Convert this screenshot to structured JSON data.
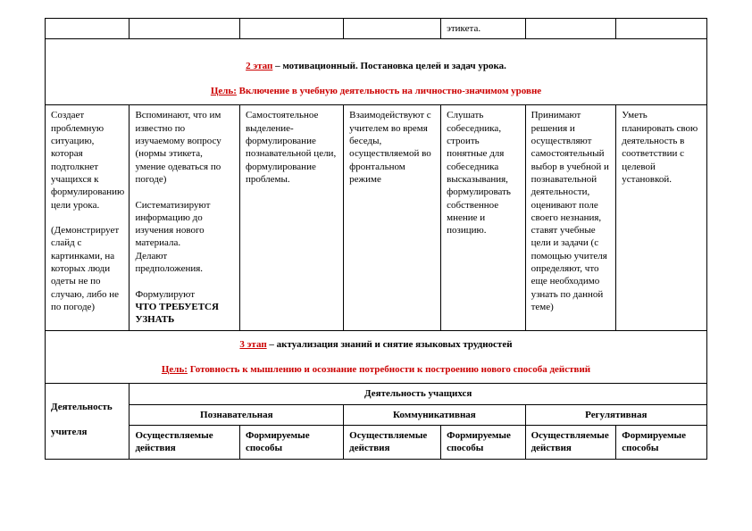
{
  "topRow": {
    "c5": "этикета."
  },
  "stage2": {
    "titlePrefix": "2 этап",
    "titleRest": " – мотивационный. Постановка целей и задач урока.",
    "goalLabel": "Цель:",
    "goalText": " Включение в учебную деятельность на личностно-значимом уровне"
  },
  "row2": {
    "c1a": "Создает проблемную ситуацию, которая подтолкнет учащихся к формулированию цели урока.",
    "c1b": "(Демонстрирует слайд с картинками, на которых люди одеты не по случаю, либо не по погоде)",
    "c2a": "Вспоминают, что им известно по изучаемому вопросу (нормы этикета, умение одеваться по погоде)",
    "c2b": "Систематизируют информацию до изучения нового материала.",
    "c2c": " Делают предположения.",
    "c2d": "Формулируют",
    "c2e": " ЧТО ТРЕБУЕТСЯ УЗНАТЬ",
    "c3": "Самостоятельное выделение-формулирование познавательной цели, формулирование проблемы.",
    "c4": "Взаимодействуют с учителем во время беседы, осуществляемой во фронтальном режиме",
    "c5": "Слушать собеседника, строить понятные для собеседника высказывания, формулировать собственное мнение и позицию.",
    "c6": "Принимают решения и осуществляют самостоятельный выбор в учебной и познавательной деятельности, оценивают поле своего незнания, ставят учебные цели и задачи (с помощью учителя определяют, что еще необходимо узнать по данной теме)",
    "c7": "Уметь планировать свою деятельность в соответствии с целевой установкой."
  },
  "stage3": {
    "titlePrefix": "3 этап",
    "titleRest": " – актуализация знаний и снятие языковых трудностей",
    "goalLabel": "Цель:",
    "goalText": " Готовность к мышлению и осознание потребности к построению нового способа действий"
  },
  "headers": {
    "teacherActivity": "Деятельность",
    "teacherActivity2": "учителя",
    "studentActivity": "Деятельность учащихся",
    "cognitive": "Познавательная",
    "communicative": "Коммуникативная",
    "regulatory": "Регулятивная",
    "actions": "Осуществляемые действия",
    "methods": "Формируемые способы"
  }
}
